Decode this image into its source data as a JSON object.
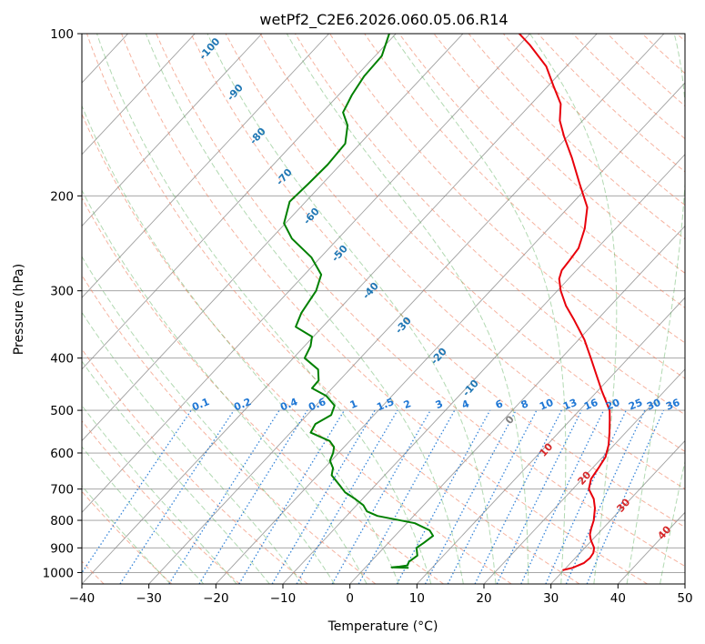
{
  "chart_data": {
    "type": "line",
    "title": "wetPf2_C2E6.2026.060.05.06.R14",
    "xlabel": "Temperature (°C)",
    "ylabel": "Pressure (hPa)",
    "xlim": [
      -40,
      50
    ],
    "ylim": [
      1050,
      100
    ],
    "y_scale": "log",
    "grid": true,
    "x_ticks": [
      -40,
      -30,
      -20,
      -10,
      0,
      10,
      20,
      30,
      40,
      50
    ],
    "y_ticks": [
      100,
      200,
      300,
      400,
      500,
      600,
      700,
      800,
      900,
      1000
    ],
    "series": [
      {
        "color": "#e8000b",
        "values": [
          {
            "p": 990,
            "t": 29.8
          },
          {
            "p": 980,
            "t": 31
          },
          {
            "p": 960,
            "t": 32
          },
          {
            "p": 940,
            "t": 32.2
          },
          {
            "p": 920,
            "t": 32
          },
          {
            "p": 900,
            "t": 31.4
          },
          {
            "p": 870,
            "t": 29.8
          },
          {
            "p": 850,
            "t": 28.9
          },
          {
            "p": 830,
            "t": 28.3
          },
          {
            "p": 800,
            "t": 27.5
          },
          {
            "p": 760,
            "t": 26
          },
          {
            "p": 730,
            "t": 24.5
          },
          {
            "p": 700,
            "t": 22.4
          },
          {
            "p": 670,
            "t": 21.3
          },
          {
            "p": 640,
            "t": 20.9
          },
          {
            "p": 610,
            "t": 20.4
          },
          {
            "p": 580,
            "t": 19.2
          },
          {
            "p": 550,
            "t": 17.6
          },
          {
            "p": 520,
            "t": 15.8
          },
          {
            "p": 500,
            "t": 14.5
          },
          {
            "p": 460,
            "t": 10.6
          },
          {
            "p": 430,
            "t": 7.6
          },
          {
            "p": 400,
            "t": 4.4
          },
          {
            "p": 370,
            "t": 0.9
          },
          {
            "p": 340,
            "t": -3.4
          },
          {
            "p": 320,
            "t": -6.6
          },
          {
            "p": 300,
            "t": -9.5
          },
          {
            "p": 285,
            "t": -11.4
          },
          {
            "p": 275,
            "t": -12.2
          },
          {
            "p": 265,
            "t": -12.4
          },
          {
            "p": 250,
            "t": -12.8
          },
          {
            "p": 230,
            "t": -14.6
          },
          {
            "p": 210,
            "t": -17.2
          },
          {
            "p": 190,
            "t": -21.6
          },
          {
            "p": 170,
            "t": -26.4
          },
          {
            "p": 155,
            "t": -30.6
          },
          {
            "p": 145,
            "t": -33.4
          },
          {
            "p": 135,
            "t": -35.6
          },
          {
            "p": 125,
            "t": -39.2
          },
          {
            "p": 115,
            "t": -43
          },
          {
            "p": 105,
            "t": -48.4
          },
          {
            "p": 100,
            "t": -51.6
          }
        ]
      },
      {
        "color": "#008000",
        "values": [
          {
            "p": 980,
            "t": 6.5
          },
          {
            "p": 978,
            "t": 3.9
          },
          {
            "p": 975,
            "t": 5
          },
          {
            "p": 970,
            "t": 6
          },
          {
            "p": 955,
            "t": 5.7
          },
          {
            "p": 930,
            "t": 6.1
          },
          {
            "p": 900,
            "t": 4.9
          },
          {
            "p": 880,
            "t": 5.3
          },
          {
            "p": 855,
            "t": 5.7
          },
          {
            "p": 835,
            "t": 4.4
          },
          {
            "p": 810,
            "t": 1.2
          },
          {
            "p": 785,
            "t": -5.4
          },
          {
            "p": 770,
            "t": -7.6
          },
          {
            "p": 750,
            "t": -9
          },
          {
            "p": 730,
            "t": -11.1
          },
          {
            "p": 710,
            "t": -13.5
          },
          {
            "p": 690,
            "t": -15.2
          },
          {
            "p": 660,
            "t": -17.9
          },
          {
            "p": 640,
            "t": -18.7
          },
          {
            "p": 620,
            "t": -20.2
          },
          {
            "p": 600,
            "t": -20.8
          },
          {
            "p": 585,
            "t": -21.5
          },
          {
            "p": 570,
            "t": -23
          },
          {
            "p": 550,
            "t": -27
          },
          {
            "p": 530,
            "t": -27.5
          },
          {
            "p": 510,
            "t": -26.4
          },
          {
            "p": 490,
            "t": -27.2
          },
          {
            "p": 470,
            "t": -29.8
          },
          {
            "p": 455,
            "t": -33
          },
          {
            "p": 440,
            "t": -33.1
          },
          {
            "p": 420,
            "t": -34.7
          },
          {
            "p": 400,
            "t": -38.3
          },
          {
            "p": 380,
            "t": -39.1
          },
          {
            "p": 365,
            "t": -40.2
          },
          {
            "p": 350,
            "t": -44
          },
          {
            "p": 330,
            "t": -45.1
          },
          {
            "p": 300,
            "t": -46
          },
          {
            "p": 280,
            "t": -47.5
          },
          {
            "p": 260,
            "t": -51.4
          },
          {
            "p": 240,
            "t": -56.9
          },
          {
            "p": 225,
            "t": -60.2
          },
          {
            "p": 205,
            "t": -62.4
          },
          {
            "p": 190,
            "t": -62.1
          },
          {
            "p": 175,
            "t": -61.9
          },
          {
            "p": 160,
            "t": -62.2
          },
          {
            "p": 148,
            "t": -64.4
          },
          {
            "p": 140,
            "t": -66.9
          },
          {
            "p": 130,
            "t": -68
          },
          {
            "p": 120,
            "t": -68.8
          },
          {
            "p": 110,
            "t": -69
          },
          {
            "p": 100,
            "t": -71
          }
        ]
      }
    ],
    "dry_adiabat_labels": [
      -100,
      -90,
      -80,
      -70,
      -60,
      -50,
      -40,
      -30,
      -20,
      -10,
      0,
      10,
      20,
      30,
      40
    ],
    "mixing_ratio_labels": [
      "0.1",
      "0.2",
      "0.4",
      "0.6",
      "1",
      "1.5",
      "2",
      "3",
      "4",
      "6",
      "8",
      "10",
      "13",
      "16",
      "20",
      "25",
      "30",
      "36"
    ],
    "colors": {
      "dry_adiabat": "#f08060",
      "moist_adiabat": "#55aa55",
      "mixing_ratio": "#1f77d4",
      "isotherm": "#808080",
      "isobar": "#9a9a9a",
      "label_cold": "#1f77b4",
      "label_zero": "#808080",
      "label_warm": "#d62728"
    }
  }
}
